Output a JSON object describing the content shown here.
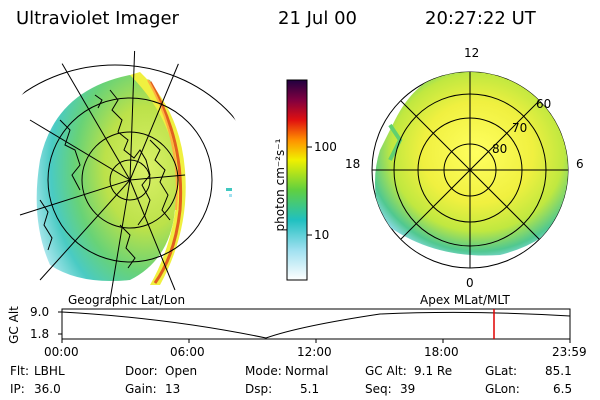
{
  "header": {
    "title": "Ultraviolet Imager",
    "date": "21 Jul 00",
    "time": "20:27:22 UT"
  },
  "colorbar": {
    "label": "photon cm⁻²s⁻¹",
    "ticks": [
      "100",
      "10"
    ]
  },
  "polar": {
    "mlt_labels": [
      "12",
      "18",
      "6",
      "0"
    ],
    "lat_labels": [
      "60",
      "70",
      "80"
    ]
  },
  "panel_labels": {
    "left": "Geographic Lat/Lon",
    "right": "Apex MLat/MLT"
  },
  "alt_plot": {
    "axis_label": "GC Alt",
    "y_ticks": [
      "9.0",
      "1.8"
    ],
    "x_ticks": [
      "00:00",
      "06:00",
      "12:00",
      "18:00",
      "23:59"
    ],
    "marker_color": "#e00000"
  },
  "footer": {
    "row1": [
      {
        "label": "Flt:",
        "value": "LBHL"
      },
      {
        "label": "Door:",
        "value": "Open"
      },
      {
        "label": "Mode:",
        "value": "Normal"
      },
      {
        "label": "GC Alt:",
        "value": "9.1 Re"
      },
      {
        "label": "GLat:",
        "value": "85.1"
      }
    ],
    "row2": [
      {
        "label": "IP:",
        "value": "36.0"
      },
      {
        "label": "Gain:",
        "value": "13"
      },
      {
        "label": "Dsp:",
        "value": "5.1"
      },
      {
        "label": "Seq:",
        "value": "39"
      },
      {
        "label": "GLon:",
        "value": "6.5"
      }
    ]
  }
}
